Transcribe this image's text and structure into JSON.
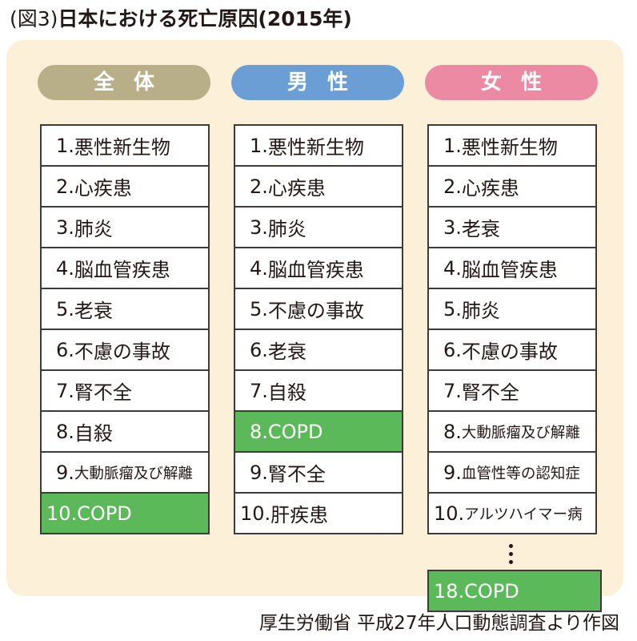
{
  "title": {
    "label": "(図3)",
    "main": "日本における死亡原因(2015年)"
  },
  "colors": {
    "overall": "#b8ae87",
    "male": "#6b9ed5",
    "female": "#ec8aa4",
    "copd_highlight": "#5cb95a",
    "panel_bg": "#fcf1d8"
  },
  "columns": [
    {
      "header": "全体",
      "items": [
        {
          "rank": "1.",
          "label": "悪性新生物"
        },
        {
          "rank": "2.",
          "label": "心疾患"
        },
        {
          "rank": "3.",
          "label": "肺炎"
        },
        {
          "rank": "4.",
          "label": "脳血管疾患"
        },
        {
          "rank": "5.",
          "label": "老衰"
        },
        {
          "rank": "6.",
          "label": "不慮の事故"
        },
        {
          "rank": "7.",
          "label": "腎不全"
        },
        {
          "rank": "8.",
          "label": "自殺"
        },
        {
          "rank": "9.",
          "label": "大動脈瘤及び解離"
        },
        {
          "rank": "10.",
          "label": "COPD"
        }
      ]
    },
    {
      "header": "男性",
      "items": [
        {
          "rank": "1.",
          "label": "悪性新生物"
        },
        {
          "rank": "2.",
          "label": "心疾患"
        },
        {
          "rank": "3.",
          "label": "肺炎"
        },
        {
          "rank": "4.",
          "label": "脳血管疾患"
        },
        {
          "rank": "5.",
          "label": "不慮の事故"
        },
        {
          "rank": "6.",
          "label": "老衰"
        },
        {
          "rank": "7.",
          "label": "自殺"
        },
        {
          "rank": "8.",
          "label": "COPD"
        },
        {
          "rank": "9.",
          "label": "腎不全"
        },
        {
          "rank": "10.",
          "label": "肝疾患"
        }
      ]
    },
    {
      "header": "女性",
      "items": [
        {
          "rank": "1.",
          "label": "悪性新生物"
        },
        {
          "rank": "2.",
          "label": "心疾患"
        },
        {
          "rank": "3.",
          "label": "老衰"
        },
        {
          "rank": "4.",
          "label": "脳血管疾患"
        },
        {
          "rank": "5.",
          "label": "肺炎"
        },
        {
          "rank": "6.",
          "label": "不慮の事故"
        },
        {
          "rank": "7.",
          "label": "腎不全"
        },
        {
          "rank": "8.",
          "label": "大動脈瘤及び解離"
        },
        {
          "rank": "9.",
          "label": "血管性等の認知症"
        },
        {
          "rank": "10.",
          "label": "アルツハイマー病"
        }
      ],
      "extra": {
        "rank": "18.",
        "label": "COPD"
      }
    }
  ],
  "source": "厚生労働省 平成27年人口動態調査より作図"
}
